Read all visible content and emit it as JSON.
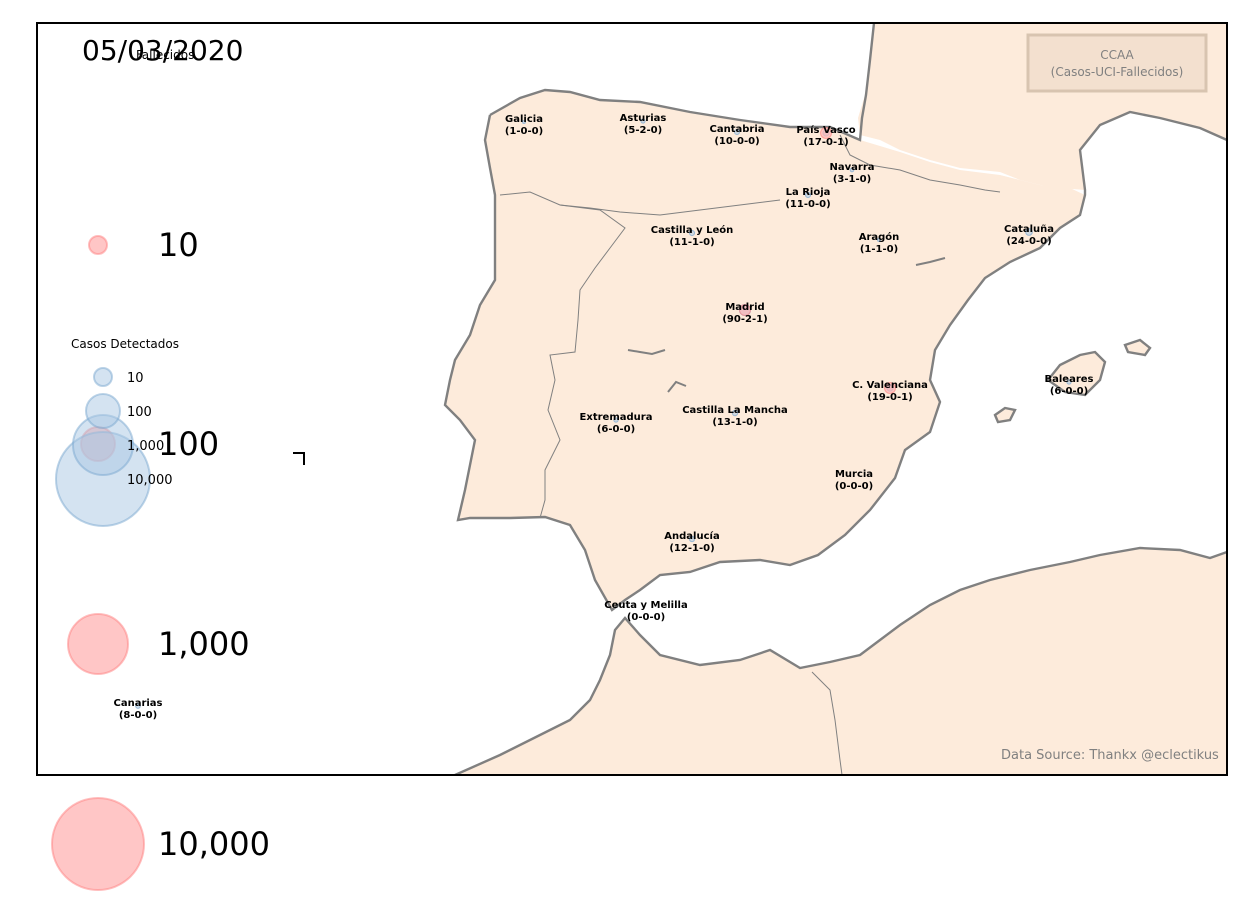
{
  "date": "05/03/2020",
  "legend_box": {
    "title": "CCAA",
    "subtitle": "(Casos-UCI-Fallecidos)"
  },
  "source": "Data Source: Thankx @eclectikus",
  "legend_deaths": {
    "title": "Fallecidos",
    "items": [
      {
        "label": "10",
        "value": 10
      },
      {
        "label": "100",
        "value": 100
      },
      {
        "label": "1,000",
        "value": 1000
      },
      {
        "label": "10,000",
        "value": 10000
      }
    ]
  },
  "legend_cases": {
    "title": "Casos Detectados",
    "items": [
      {
        "label": "10",
        "value": 10
      },
      {
        "label": "100",
        "value": 100
      },
      {
        "label": "1,000",
        "value": 1000
      },
      {
        "label": "10,000",
        "value": 10000
      }
    ]
  },
  "regions": [
    {
      "id": "galicia",
      "name": "Galicia",
      "stats": "(1-0-0)",
      "cases": 1,
      "uci": 0,
      "deaths": 0
    },
    {
      "id": "asturias",
      "name": "Asturias",
      "stats": "(5-2-0)",
      "cases": 5,
      "uci": 2,
      "deaths": 0
    },
    {
      "id": "cantabria",
      "name": "Cantabria",
      "stats": "(10-0-0)",
      "cases": 10,
      "uci": 0,
      "deaths": 0
    },
    {
      "id": "pais-vasco",
      "name": "País Vasco",
      "stats": "(17-0-1)",
      "cases": 17,
      "uci": 0,
      "deaths": 1
    },
    {
      "id": "navarra",
      "name": "Navarra",
      "stats": "(3-1-0)",
      "cases": 3,
      "uci": 1,
      "deaths": 0
    },
    {
      "id": "la-rioja",
      "name": "La Rioja",
      "stats": "(11-0-0)",
      "cases": 11,
      "uci": 0,
      "deaths": 0
    },
    {
      "id": "castilla-y-leon",
      "name": "Castilla y León",
      "stats": "(11-1-0)",
      "cases": 11,
      "uci": 1,
      "deaths": 0
    },
    {
      "id": "aragon",
      "name": "Aragón",
      "stats": "(1-1-0)",
      "cases": 1,
      "uci": 1,
      "deaths": 0
    },
    {
      "id": "cataluna",
      "name": "Cataluña",
      "stats": "(24-0-0)",
      "cases": 24,
      "uci": 0,
      "deaths": 0
    },
    {
      "id": "madrid",
      "name": "Madrid",
      "stats": "(90-2-1)",
      "cases": 90,
      "uci": 2,
      "deaths": 1
    },
    {
      "id": "c-valenciana",
      "name": "C. Valenciana",
      "stats": "(19-0-1)",
      "cases": 19,
      "uci": 0,
      "deaths": 1
    },
    {
      "id": "baleares",
      "name": "Baleares",
      "stats": "(6-0-0)",
      "cases": 6,
      "uci": 0,
      "deaths": 0
    },
    {
      "id": "extremadura",
      "name": "Extremadura",
      "stats": "(6-0-0)",
      "cases": 6,
      "uci": 0,
      "deaths": 0
    },
    {
      "id": "castilla-la-mancha",
      "name": "Castilla La Mancha",
      "stats": "(13-1-0)",
      "cases": 13,
      "uci": 1,
      "deaths": 0
    },
    {
      "id": "murcia",
      "name": "Murcia",
      "stats": "(0-0-0)",
      "cases": 0,
      "uci": 0,
      "deaths": 0
    },
    {
      "id": "andalucia",
      "name": "Andalucía",
      "stats": "(12-1-0)",
      "cases": 12,
      "uci": 1,
      "deaths": 0
    },
    {
      "id": "ceuta-y-melilla",
      "name": "Ceuta y Melilla",
      "stats": "(0-0-0)",
      "cases": 0,
      "uci": 0,
      "deaths": 0
    },
    {
      "id": "canarias",
      "name": "Canarias",
      "stats": "(8-0-0)",
      "cases": 8,
      "uci": 0,
      "deaths": 0
    }
  ],
  "colors": {
    "land": "#fdebdb",
    "border": "#808080",
    "cases": "#a9c8e3",
    "cases_stroke": "#7aa7d0",
    "deaths": "#ffb3b3",
    "deaths_stroke": "#ff8080",
    "legend_box_fill": "#f3e0cf",
    "legend_box_stroke": "#d8c4b0",
    "legend_box_text": "#808080"
  }
}
